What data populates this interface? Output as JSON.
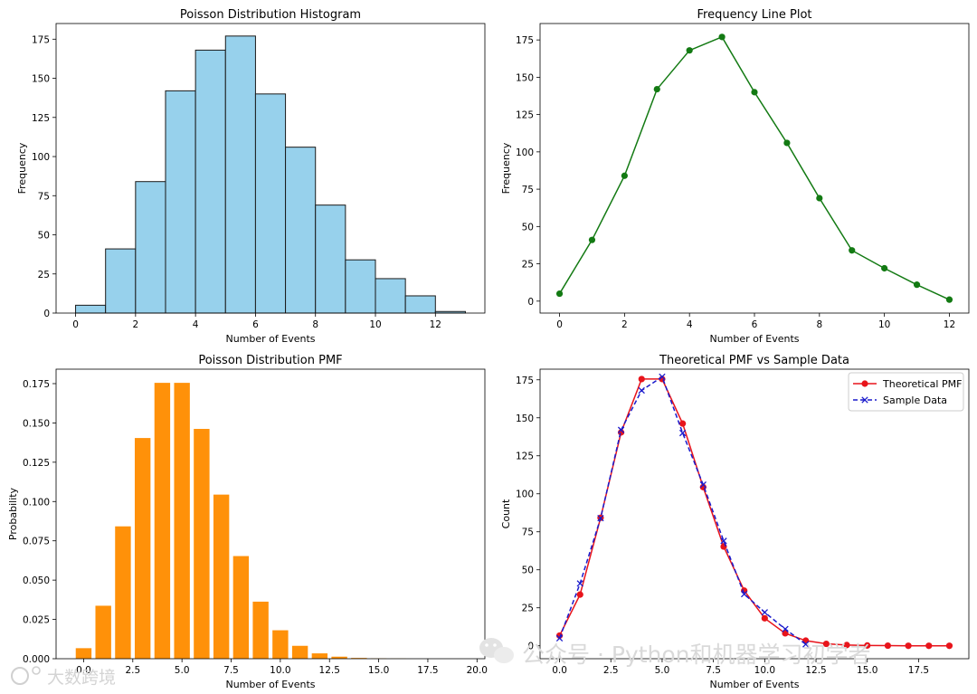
{
  "chart_data": [
    {
      "type": "bar",
      "title": "Poisson Distribution Histogram",
      "xlabel": "Number of Events",
      "ylabel": "Frequency",
      "bins_start": [
        0,
        1,
        2,
        3,
        4,
        5,
        6,
        7,
        8,
        9,
        10,
        11,
        12
      ],
      "bin_width": 1,
      "values": [
        5,
        41,
        84,
        142,
        168,
        177,
        140,
        106,
        69,
        34,
        22,
        11,
        1
      ],
      "xlim": [
        -0.65,
        13.65
      ],
      "ylim": [
        0,
        185
      ],
      "xticks": [
        0,
        2,
        4,
        6,
        8,
        10,
        12
      ],
      "yticks": [
        0,
        25,
        50,
        75,
        100,
        125,
        150,
        175
      ],
      "color": "#97d1ec",
      "edgecolor": "#1a1a1a"
    },
    {
      "type": "line",
      "title": "Frequency Line Plot",
      "xlabel": "Number of Events",
      "ylabel": "Frequency",
      "x": [
        0,
        1,
        2,
        3,
        4,
        5,
        6,
        7,
        8,
        9,
        10,
        11,
        12
      ],
      "y": [
        5,
        41,
        84,
        142,
        168,
        177,
        140,
        106,
        69,
        34,
        22,
        11,
        1
      ],
      "xlim": [
        -0.6,
        12.6
      ],
      "ylim": [
        -8,
        186
      ],
      "xticks": [
        0,
        2,
        4,
        6,
        8,
        10,
        12
      ],
      "yticks": [
        0,
        25,
        50,
        75,
        100,
        125,
        150,
        175
      ],
      "color": "#137a13"
    },
    {
      "type": "bar",
      "title": "Poisson Distribution PMF",
      "xlabel": "Number of Events",
      "ylabel": "Probability",
      "x": [
        0,
        1,
        2,
        3,
        4,
        5,
        6,
        7,
        8,
        9,
        10,
        11,
        12,
        13,
        14,
        15,
        16,
        17,
        18,
        19
      ],
      "values": [
        0.0067,
        0.0337,
        0.0842,
        0.1404,
        0.1755,
        0.1755,
        0.1462,
        0.1044,
        0.0653,
        0.0363,
        0.0181,
        0.0082,
        0.0034,
        0.0013,
        0.0005,
        0.0002,
        0.0001,
        0.0,
        0.0,
        0.0
      ],
      "bar_width": 0.8,
      "xlim": [
        -1.4,
        20.4
      ],
      "ylim": [
        0,
        0.1842
      ],
      "xticks": [
        "0.0",
        "2.5",
        "5.0",
        "7.5",
        "10.0",
        "12.5",
        "15.0",
        "17.5",
        "20.0"
      ],
      "yticks": [
        "0.000",
        "0.025",
        "0.050",
        "0.075",
        "0.100",
        "0.125",
        "0.150",
        "0.175"
      ],
      "color": "#ff9109"
    },
    {
      "type": "line",
      "title": "Theoretical PMF vs Sample Data",
      "xlabel": "Number of Events",
      "ylabel": "Count",
      "xlim": [
        -0.95,
        19.95
      ],
      "ylim": [
        -8.5,
        182
      ],
      "xticks": [
        "0.0",
        "2.5",
        "5.0",
        "7.5",
        "10.0",
        "12.5",
        "15.0",
        "17.5"
      ],
      "yticks": [
        0,
        25,
        50,
        75,
        100,
        125,
        150,
        175
      ],
      "legend_position": "top-right",
      "series": [
        {
          "name": "Theoretical PMF",
          "x": [
            0,
            1,
            2,
            3,
            4,
            5,
            6,
            7,
            8,
            9,
            10,
            11,
            12,
            13,
            14,
            15,
            16,
            17,
            18,
            19
          ],
          "y": [
            6.7,
            33.7,
            84.2,
            140.4,
            175.5,
            175.5,
            146.2,
            104.4,
            65.3,
            36.3,
            18.1,
            8.2,
            3.4,
            1.3,
            0.5,
            0.2,
            0.1,
            0.0,
            0.0,
            0.0
          ],
          "color": "#e8141b",
          "style": "solid",
          "marker": "circle"
        },
        {
          "name": "Sample Data",
          "x": [
            0,
            1,
            2,
            3,
            4,
            5,
            6,
            7,
            8,
            9,
            10,
            11,
            12
          ],
          "y": [
            5,
            41,
            84,
            142,
            168,
            177,
            140,
            106,
            69,
            34,
            22,
            11,
            1
          ],
          "color": "#1a1acc",
          "style": "dashed",
          "marker": "x"
        }
      ]
    }
  ],
  "watermark": {
    "wechat_text": "公众号 · Python和机器学习初学者",
    "brand_text": "大数跨境"
  }
}
